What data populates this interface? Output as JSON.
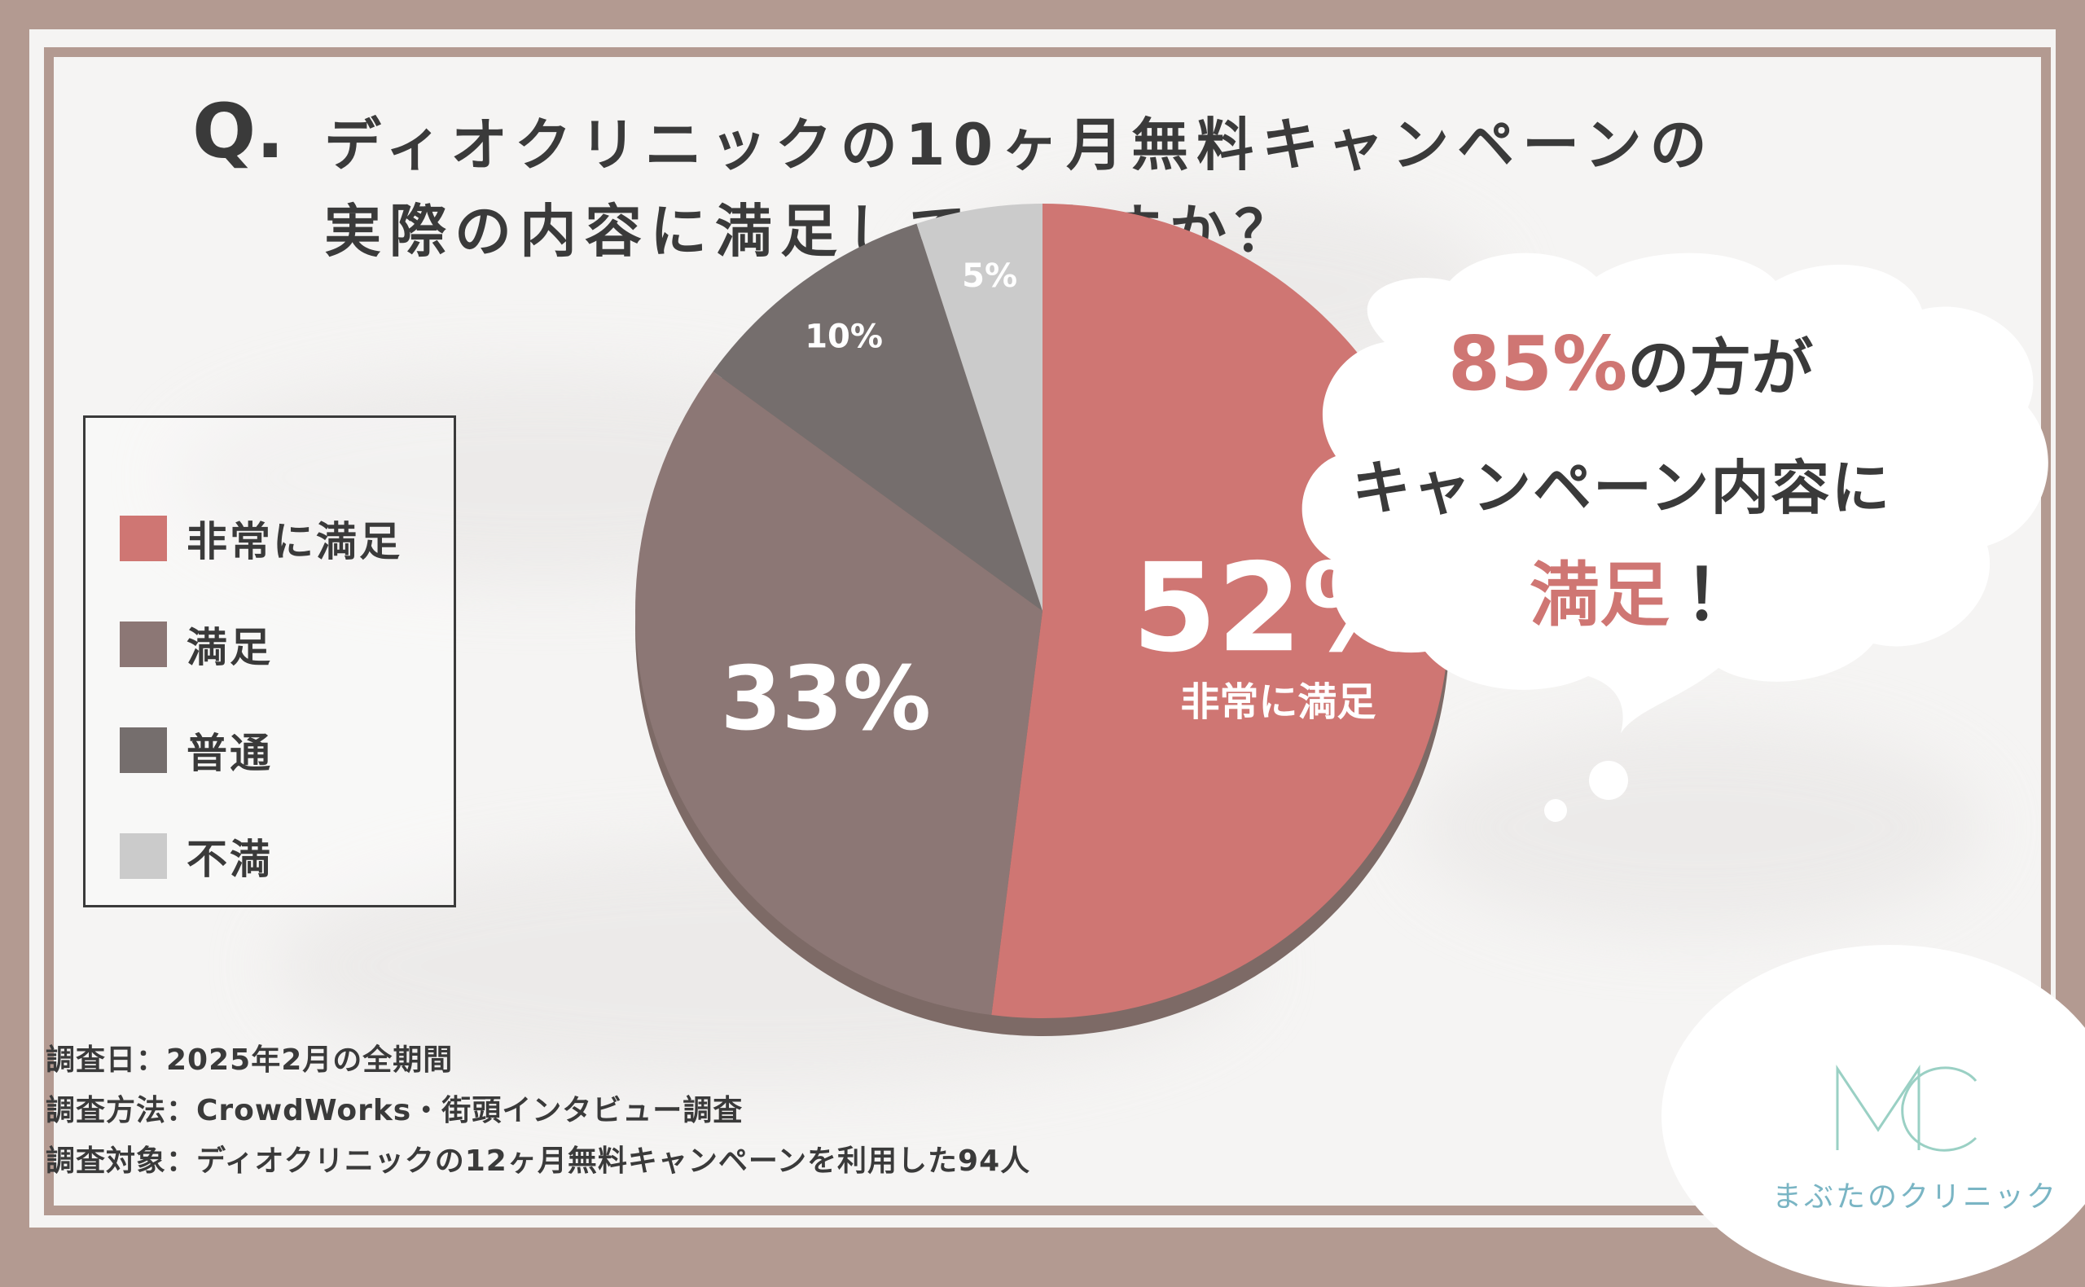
{
  "question": {
    "mark": "Q.",
    "line1": "ディオクリニックの10ヶ月無料キャンペーンの",
    "line2": "実際の内容に満足していますか？"
  },
  "legend": [
    {
      "label": "非常に満足",
      "color": "#cf7673"
    },
    {
      "label": "満足",
      "color": "#8c7775"
    },
    {
      "label": "普通",
      "color": "#756e6d"
    },
    {
      "label": "不満",
      "color": "#cbcbcb"
    }
  ],
  "chart_data": {
    "type": "pie",
    "categories": [
      "非常に満足",
      "満足",
      "普通",
      "不満"
    ],
    "values": [
      52,
      33,
      10,
      5
    ],
    "labels": [
      "52%",
      "33%",
      "10%",
      "5%"
    ],
    "highlight_sublabel": "非常に満足",
    "colors": [
      "#cf7673",
      "#8c7775",
      "#756e6d",
      "#cbcbcb"
    ]
  },
  "callout": {
    "accent": "85%",
    "line1_rest": "の方が",
    "line2": "キャンペーン内容に",
    "line3": "満足",
    "line3_end": "！"
  },
  "survey": {
    "date": "調査日：2025年2月の全期間",
    "method": "調査方法：CrowdWorks・街頭インタビュー調査",
    "target": "調査対象：ディオクリニックの12ヶ月無料キャンペーンを利用した94人"
  },
  "logo": {
    "text": "まぶたのクリニック",
    "color": "#7ab5c4"
  }
}
